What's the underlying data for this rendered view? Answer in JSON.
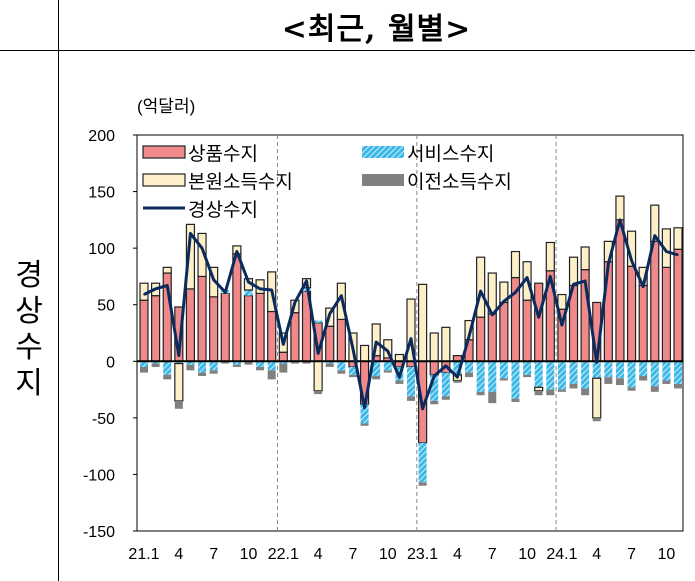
{
  "header": {
    "title": "<최근, 월별>"
  },
  "row_label": "경상수지",
  "chart_data": {
    "type": "bar",
    "subtype": "stacked bar with line",
    "unit_label": "(억달러)",
    "ylim": [
      -150,
      200
    ],
    "yticks": [
      200,
      150,
      100,
      50,
      0,
      -50,
      -100,
      -150
    ],
    "x_tick_labels": [
      "21.1",
      "4",
      "7",
      "10",
      "22.1",
      "4",
      "7",
      "10",
      "23.1",
      "4",
      "7",
      "10",
      "24.1",
      "4",
      "7",
      "10"
    ],
    "year_dividers": [
      "22.1",
      "23.1",
      "24.1"
    ],
    "legend_placement": "top-left",
    "categories": [
      "21.1",
      "21.2",
      "21.3",
      "21.4",
      "21.5",
      "21.6",
      "21.7",
      "21.8",
      "21.9",
      "21.10",
      "21.11",
      "21.12",
      "22.1",
      "22.2",
      "22.3",
      "22.4",
      "22.5",
      "22.6",
      "22.7",
      "22.8",
      "22.9",
      "22.10",
      "22.11",
      "22.12",
      "23.1",
      "23.2",
      "23.3",
      "23.4",
      "23.5",
      "23.6",
      "23.7",
      "23.8",
      "23.9",
      "23.10",
      "23.11",
      "23.12",
      "24.1",
      "24.2",
      "24.3",
      "24.4",
      "24.5",
      "24.6",
      "24.7",
      "24.8",
      "24.9",
      "24.10",
      "24.11"
    ],
    "series": [
      {
        "name": "상품수지",
        "kind": "bar",
        "color": "#F08A8A",
        "values": [
          54,
          58,
          78,
          48,
          64,
          75,
          57,
          60,
          95,
          58,
          60,
          44,
          8,
          43,
          62,
          34,
          31,
          37,
          -5,
          -38,
          5,
          3,
          -5,
          -5,
          -72,
          -12,
          -10,
          5,
          19,
          39,
          42,
          52,
          74,
          54,
          69,
          80,
          46,
          67,
          81,
          52,
          88,
          125,
          84,
          67,
          106,
          83,
          99
        ]
      },
      {
        "name": "서비스수지",
        "kind": "bar",
        "color": "#3CB8E6",
        "pattern": "hatched",
        "values": [
          -5,
          -2,
          -12,
          -2,
          -3,
          -10,
          -8,
          3,
          -3,
          5,
          -5,
          -8,
          -2,
          -1,
          3,
          2,
          -2,
          -8,
          -7,
          -17,
          -13,
          -8,
          -12,
          -26,
          -35,
          -23,
          -21,
          -12,
          -10,
          -27,
          -27,
          -15,
          -33,
          -12,
          -23,
          -25,
          -25,
          -20,
          -24,
          -15,
          -14,
          -15,
          -23,
          -13,
          -22,
          -17,
          -20
        ]
      },
      {
        "name": "본원소득수지",
        "kind": "bar",
        "color": "#FDF0C8",
        "values": [
          15,
          11,
          5,
          -33,
          57,
          38,
          26,
          0,
          7,
          10,
          12,
          35,
          17,
          11,
          8,
          -26,
          16,
          32,
          25,
          14,
          28,
          16,
          6,
          55,
          68,
          25,
          30,
          -5,
          17,
          53,
          36,
          18,
          23,
          34,
          -3,
          25,
          13,
          25,
          20,
          -35,
          18,
          21,
          31,
          16,
          32,
          34,
          19
        ]
      },
      {
        "name": "이전소득수지",
        "kind": "bar",
        "color": "#808080",
        "values": [
          -5,
          -3,
          -4,
          -7,
          -5,
          -3,
          -3,
          -2,
          -2,
          -3,
          -3,
          -8,
          -8,
          -1,
          -2,
          -3,
          -3,
          -3,
          -2,
          -2,
          -3,
          -2,
          -3,
          -4,
          -3,
          -3,
          -3,
          -2,
          -4,
          -3,
          -10,
          -2,
          -3,
          -2,
          -4,
          -5,
          -2,
          -4,
          -6,
          -3,
          -6,
          -6,
          -3,
          -4,
          -5,
          -3,
          -4
        ]
      },
      {
        "name": "경상수지",
        "kind": "line",
        "color": "#0B2A5E",
        "values": [
          59,
          64,
          67,
          5,
          113,
          100,
          72,
          61,
          97,
          70,
          64,
          63,
          15,
          52,
          71,
          7,
          42,
          58,
          11,
          -41,
          17,
          9,
          -14,
          20,
          -42,
          -13,
          -4,
          -14,
          22,
          62,
          41,
          53,
          61,
          74,
          39,
          75,
          32,
          68,
          71,
          -1,
          86,
          125,
          89,
          66,
          111,
          97,
          94
        ]
      }
    ]
  }
}
